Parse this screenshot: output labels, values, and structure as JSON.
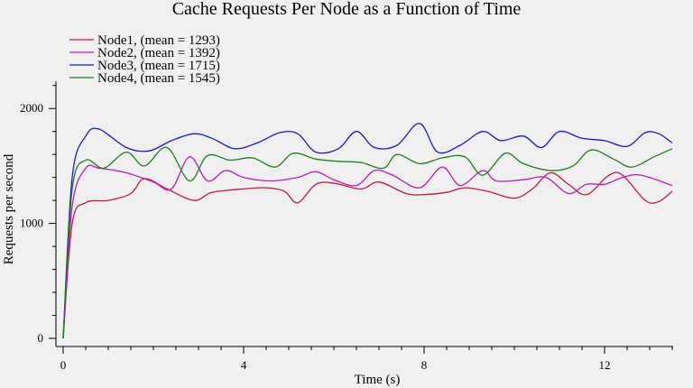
{
  "chart_data": {
    "type": "line",
    "title": "Cache Requests Per Node as a Function of Time",
    "xlabel": "Time (s)",
    "ylabel": "Requests per second",
    "xlim": [
      0,
      13.6
    ],
    "ylim": [
      0,
      2250
    ],
    "xticks": [
      0,
      4,
      8,
      12
    ],
    "yticks": [
      0,
      1000,
      2000
    ],
    "x_minor_step": 0.5,
    "y_minor_step": 200,
    "grid": false,
    "legend_position": "top-left",
    "series": [
      {
        "name": "Node1, (mean = 1293)",
        "color": "#c8193c",
        "points": [
          [
            0,
            0
          ],
          [
            0.2,
            1000
          ],
          [
            0.5,
            1180
          ],
          [
            1,
            1200
          ],
          [
            1.5,
            1260
          ],
          [
            1.8,
            1390
          ],
          [
            2.3,
            1300
          ],
          [
            2.9,
            1200
          ],
          [
            3.3,
            1270
          ],
          [
            4,
            1300
          ],
          [
            4.5,
            1310
          ],
          [
            4.9,
            1280
          ],
          [
            5.2,
            1180
          ],
          [
            5.6,
            1340
          ],
          [
            6,
            1350
          ],
          [
            6.6,
            1300
          ],
          [
            7,
            1360
          ],
          [
            7.6,
            1260
          ],
          [
            8,
            1250
          ],
          [
            8.5,
            1270
          ],
          [
            8.9,
            1310
          ],
          [
            9.4,
            1280
          ],
          [
            10,
            1220
          ],
          [
            10.4,
            1300
          ],
          [
            10.8,
            1440
          ],
          [
            11.2,
            1340
          ],
          [
            11.6,
            1250
          ],
          [
            12.1,
            1420
          ],
          [
            12.4,
            1420
          ],
          [
            12.9,
            1200
          ],
          [
            13.2,
            1190
          ],
          [
            13.5,
            1280
          ]
        ]
      },
      {
        "name": "Node2, (mean = 1392)",
        "color": "#c018c0",
        "points": [
          [
            0,
            0
          ],
          [
            0.2,
            1150
          ],
          [
            0.5,
            1480
          ],
          [
            0.8,
            1480
          ],
          [
            1.4,
            1440
          ],
          [
            2.0,
            1360
          ],
          [
            2.4,
            1300
          ],
          [
            2.8,
            1580
          ],
          [
            3.2,
            1370
          ],
          [
            3.6,
            1460
          ],
          [
            4.0,
            1400
          ],
          [
            4.6,
            1370
          ],
          [
            5.2,
            1400
          ],
          [
            5.6,
            1450
          ],
          [
            6.0,
            1380
          ],
          [
            6.5,
            1330
          ],
          [
            6.9,
            1460
          ],
          [
            7.3,
            1420
          ],
          [
            7.9,
            1310
          ],
          [
            8.4,
            1490
          ],
          [
            8.8,
            1330
          ],
          [
            9.3,
            1460
          ],
          [
            9.6,
            1370
          ],
          [
            10.2,
            1380
          ],
          [
            10.7,
            1400
          ],
          [
            11.2,
            1260
          ],
          [
            11.6,
            1340
          ],
          [
            12.0,
            1340
          ],
          [
            12.4,
            1400
          ],
          [
            12.8,
            1420
          ],
          [
            13.5,
            1330
          ]
        ]
      },
      {
        "name": "Node3, (mean = 1715)",
        "color": "#1818c8",
        "points": [
          [
            0,
            0
          ],
          [
            0.2,
            1400
          ],
          [
            0.5,
            1760
          ],
          [
            0.8,
            1820
          ],
          [
            1.4,
            1660
          ],
          [
            1.9,
            1630
          ],
          [
            2.4,
            1720
          ],
          [
            2.9,
            1780
          ],
          [
            3.3,
            1740
          ],
          [
            3.8,
            1650
          ],
          [
            4.3,
            1700
          ],
          [
            4.8,
            1790
          ],
          [
            5.2,
            1780
          ],
          [
            5.6,
            1620
          ],
          [
            6.1,
            1650
          ],
          [
            6.5,
            1800
          ],
          [
            6.9,
            1660
          ],
          [
            7.4,
            1680
          ],
          [
            7.9,
            1870
          ],
          [
            8.3,
            1620
          ],
          [
            8.8,
            1680
          ],
          [
            9.3,
            1800
          ],
          [
            9.7,
            1720
          ],
          [
            10.2,
            1760
          ],
          [
            10.6,
            1660
          ],
          [
            11.0,
            1800
          ],
          [
            11.5,
            1740
          ],
          [
            12.0,
            1720
          ],
          [
            12.5,
            1670
          ],
          [
            12.9,
            1790
          ],
          [
            13.2,
            1780
          ],
          [
            13.5,
            1700
          ]
        ]
      },
      {
        "name": "Node4, (mean = 1545)",
        "color": "#188018",
        "points": [
          [
            0,
            0
          ],
          [
            0.2,
            1300
          ],
          [
            0.5,
            1550
          ],
          [
            0.9,
            1480
          ],
          [
            1.4,
            1620
          ],
          [
            1.8,
            1500
          ],
          [
            2.3,
            1660
          ],
          [
            2.8,
            1370
          ],
          [
            3.2,
            1590
          ],
          [
            3.7,
            1550
          ],
          [
            4.2,
            1570
          ],
          [
            4.7,
            1490
          ],
          [
            5.1,
            1610
          ],
          [
            5.6,
            1560
          ],
          [
            6.1,
            1540
          ],
          [
            6.6,
            1530
          ],
          [
            7.1,
            1480
          ],
          [
            7.4,
            1600
          ],
          [
            7.9,
            1520
          ],
          [
            8.4,
            1570
          ],
          [
            8.9,
            1580
          ],
          [
            9.3,
            1420
          ],
          [
            9.8,
            1610
          ],
          [
            10.2,
            1520
          ],
          [
            10.8,
            1460
          ],
          [
            11.3,
            1500
          ],
          [
            11.7,
            1640
          ],
          [
            12.2,
            1560
          ],
          [
            12.6,
            1490
          ],
          [
            13.1,
            1580
          ],
          [
            13.5,
            1650
          ]
        ]
      }
    ]
  }
}
